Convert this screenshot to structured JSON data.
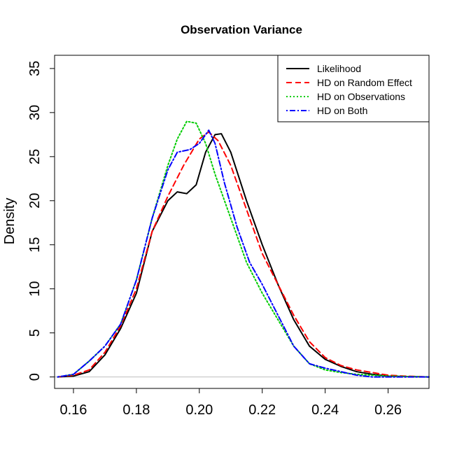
{
  "chart_data": {
    "type": "line",
    "title": "Observation Variance",
    "xlabel": "",
    "ylabel": "Density",
    "xlim": [
      0.154,
      0.273
    ],
    "ylim": [
      -1.3,
      36.5
    ],
    "xticks": [
      0.16,
      0.18,
      0.2,
      0.22,
      0.24,
      0.26
    ],
    "xtick_labels": [
      "0.16",
      "0.18",
      "0.20",
      "0.22",
      "0.24",
      "0.26"
    ],
    "yticks": [
      0,
      5,
      10,
      15,
      20,
      25,
      30,
      35
    ],
    "ytick_labels": [
      "0",
      "5",
      "10",
      "15",
      "20",
      "25",
      "30",
      "35"
    ],
    "baseline": 0,
    "legend_position": "top-right",
    "grid": false,
    "series": [
      {
        "name": "Likelihood",
        "color": "#000000",
        "dash": "solid",
        "points": [
          [
            0.155,
            0
          ],
          [
            0.16,
            0.1
          ],
          [
            0.165,
            0.6
          ],
          [
            0.17,
            2.5
          ],
          [
            0.175,
            5.5
          ],
          [
            0.18,
            9.5
          ],
          [
            0.185,
            16.5
          ],
          [
            0.19,
            20.0
          ],
          [
            0.193,
            21.0
          ],
          [
            0.196,
            20.8
          ],
          [
            0.199,
            21.8
          ],
          [
            0.202,
            25.5
          ],
          [
            0.205,
            27.5
          ],
          [
            0.207,
            27.6
          ],
          [
            0.21,
            25.5
          ],
          [
            0.215,
            20.0
          ],
          [
            0.22,
            15.0
          ],
          [
            0.225,
            10.5
          ],
          [
            0.23,
            6.5
          ],
          [
            0.235,
            3.5
          ],
          [
            0.24,
            2.0
          ],
          [
            0.245,
            1.2
          ],
          [
            0.25,
            0.6
          ],
          [
            0.255,
            0.3
          ],
          [
            0.26,
            0.1
          ],
          [
            0.265,
            0.05
          ],
          [
            0.273,
            0
          ]
        ]
      },
      {
        "name": "HD on Random Effect",
        "color": "#ff0000",
        "dash": "dashed",
        "points": [
          [
            0.155,
            0
          ],
          [
            0.16,
            0.2
          ],
          [
            0.165,
            0.8
          ],
          [
            0.17,
            2.8
          ],
          [
            0.175,
            5.8
          ],
          [
            0.18,
            10.0
          ],
          [
            0.185,
            16.5
          ],
          [
            0.19,
            20.5
          ],
          [
            0.195,
            24.0
          ],
          [
            0.2,
            27.0
          ],
          [
            0.203,
            27.8
          ],
          [
            0.206,
            26.8
          ],
          [
            0.21,
            24.0
          ],
          [
            0.215,
            19.0
          ],
          [
            0.22,
            14.0
          ],
          [
            0.225,
            10.5
          ],
          [
            0.23,
            7.0
          ],
          [
            0.235,
            4.0
          ],
          [
            0.24,
            2.2
          ],
          [
            0.245,
            1.3
          ],
          [
            0.25,
            0.8
          ],
          [
            0.255,
            0.5
          ],
          [
            0.26,
            0.2
          ],
          [
            0.265,
            0.1
          ],
          [
            0.273,
            0
          ]
        ]
      },
      {
        "name": "HD on Observations",
        "color": "#00cc00",
        "dash": "dotted",
        "points": [
          [
            0.155,
            0
          ],
          [
            0.16,
            0.3
          ],
          [
            0.165,
            1.8
          ],
          [
            0.17,
            3.5
          ],
          [
            0.175,
            6.0
          ],
          [
            0.18,
            11.0
          ],
          [
            0.185,
            18.0
          ],
          [
            0.19,
            24.0
          ],
          [
            0.193,
            27.0
          ],
          [
            0.196,
            29.0
          ],
          [
            0.199,
            28.8
          ],
          [
            0.202,
            26.5
          ],
          [
            0.205,
            23.0
          ],
          [
            0.21,
            18.0
          ],
          [
            0.215,
            13.0
          ],
          [
            0.22,
            9.5
          ],
          [
            0.225,
            6.5
          ],
          [
            0.23,
            3.5
          ],
          [
            0.235,
            1.5
          ],
          [
            0.24,
            0.8
          ],
          [
            0.245,
            0.5
          ],
          [
            0.25,
            0.3
          ],
          [
            0.255,
            0.2
          ],
          [
            0.26,
            0.1
          ],
          [
            0.273,
            0
          ]
        ]
      },
      {
        "name": "HD on Both",
        "color": "#0000ff",
        "dash": "dotdash",
        "points": [
          [
            0.155,
            0
          ],
          [
            0.16,
            0.3
          ],
          [
            0.165,
            1.8
          ],
          [
            0.17,
            3.5
          ],
          [
            0.175,
            6.0
          ],
          [
            0.18,
            11.0
          ],
          [
            0.185,
            18.0
          ],
          [
            0.19,
            23.5
          ],
          [
            0.193,
            25.5
          ],
          [
            0.197,
            25.8
          ],
          [
            0.2,
            26.5
          ],
          [
            0.203,
            28.0
          ],
          [
            0.205,
            26.5
          ],
          [
            0.208,
            22.0
          ],
          [
            0.212,
            17.0
          ],
          [
            0.216,
            13.0
          ],
          [
            0.22,
            10.5
          ],
          [
            0.225,
            7.0
          ],
          [
            0.23,
            3.5
          ],
          [
            0.235,
            1.5
          ],
          [
            0.24,
            1.0
          ],
          [
            0.245,
            0.6
          ],
          [
            0.25,
            0.2
          ],
          [
            0.255,
            0
          ],
          [
            0.273,
            0
          ]
        ]
      }
    ]
  }
}
